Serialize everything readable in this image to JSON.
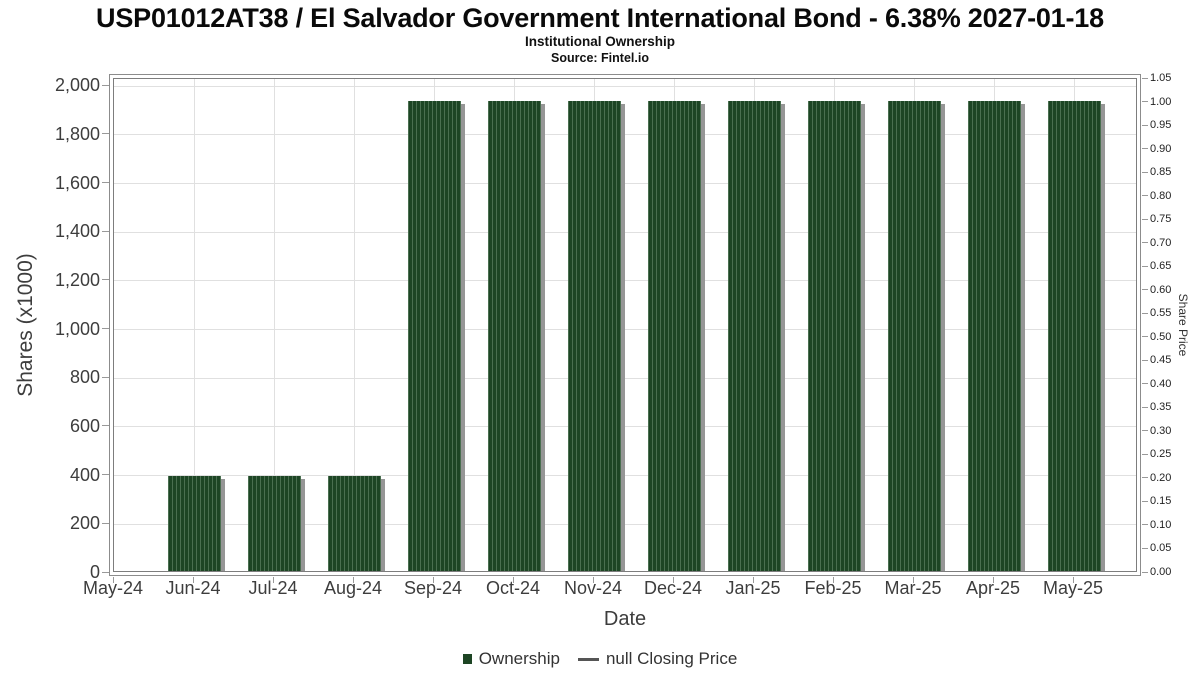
{
  "chart_data": {
    "type": "bar",
    "title": "USP01012AT38 / El Salvador Government International Bond - 6.38% 2027-01-18",
    "subtitle": "Institutional Ownership",
    "source": "Source: Fintel.io",
    "xlabel": "Date",
    "ylabel_left": "Shares (x1000)",
    "ylabel_right": "Share Price",
    "categories": [
      "May-24",
      "Jun-24",
      "Jul-24",
      "Aug-24",
      "Sep-24",
      "Oct-24",
      "Nov-24",
      "Dec-24",
      "Jan-25",
      "Feb-25",
      "Mar-25",
      "Apr-25",
      "May-25"
    ],
    "series": [
      {
        "name": "Ownership",
        "type": "bar",
        "axis": "left",
        "values": [
          null,
          400,
          400,
          400,
          1940,
          1940,
          1940,
          1940,
          1940,
          1940,
          1940,
          1940,
          1940
        ]
      },
      {
        "name": "null Closing Price",
        "type": "line",
        "axis": "right",
        "values": []
      }
    ],
    "y_left_axis": {
      "lim": [
        0,
        2030
      ],
      "tick_step": 200,
      "tick_values": [
        0,
        200,
        400,
        600,
        800,
        1000,
        1200,
        1400,
        1600,
        1800,
        2000
      ],
      "tick_labels": [
        "0",
        "200",
        "400",
        "600",
        "800",
        "1,000",
        "1,200",
        "1,400",
        "1,600",
        "1,800",
        "2,000"
      ]
    },
    "y_right_axis": {
      "lim": [
        0,
        1.05
      ],
      "tick_step": 0.05,
      "tick_labels": [
        "0.00",
        "0.05",
        "0.10",
        "0.15",
        "0.20",
        "0.25",
        "0.30",
        "0.35",
        "0.40",
        "0.45",
        "0.50",
        "0.55",
        "0.60",
        "0.65",
        "0.70",
        "0.75",
        "0.80",
        "0.85",
        "0.90",
        "0.95",
        "1.00",
        "1.05"
      ]
    },
    "grid": true,
    "legend_position": "bottom",
    "legend": [
      {
        "label": "Ownership",
        "marker": "square",
        "color": "#1d4524"
      },
      {
        "label": "null Closing Price",
        "marker": "line",
        "color": "#555555"
      }
    ],
    "colors": {
      "bar_fill": "#1d4524",
      "bar_hatch": "#4a6f50",
      "bar_shadow": "#969696",
      "grid_line": "#e0e0e0",
      "frame": "#7d7d7d",
      "tick_mark": "#999999",
      "tick_text": "#3d3d3d",
      "title_text": "#0a0a0a",
      "background": "#ffffff"
    }
  }
}
